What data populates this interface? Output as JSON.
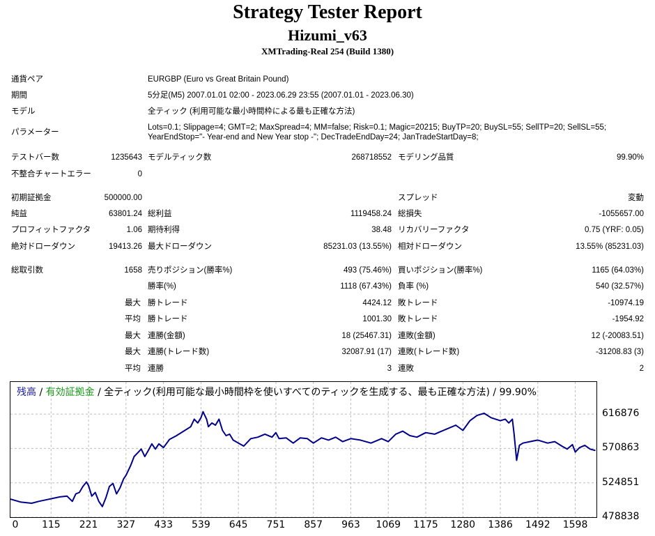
{
  "header": {
    "title": "Strategy Tester Report",
    "subtitle": "Hizumi_v63",
    "build": "XMTrading-Real 254 (Build 1380)"
  },
  "info": [
    {
      "label": "通貨ペア",
      "value": "EURGBP (Euro vs Great Britain Pound)"
    },
    {
      "label": "期間",
      "value": "5分足(M5) 2007.01.01 02:00 - 2023.06.29 23:55 (2007.01.01 - 2023.06.30)"
    },
    {
      "label": "モデル",
      "value": "全ティック (利用可能な最小時間枠による最も正確な方法)"
    },
    {
      "label": "パラメーター",
      "value": "Lots=0.1; Slippage=4; GMT=2; MaxSpread=4; MM=false; Risk=0.1; Magic=20215; BuyTP=20; BuySL=55; SellTP=20; SellSL=55; YearEndStop=\"- Year-end and New Year stop -\"; DecTradeEndDay=24; JanTradeStartDay=8;"
    }
  ],
  "stats": {
    "bars_label": "テストバー数",
    "bars": "1235643",
    "ticks_label": "モデルティック数",
    "ticks": "268718552",
    "quality_label": "モデリング品質",
    "quality": "99.90%",
    "mismatch_label": "不整合チャートエラー",
    "mismatch": "0",
    "deposit_label": "初期証拠金",
    "deposit": "500000.00",
    "spread_label": "スプレッド",
    "spread": "変動",
    "net_label": "純益",
    "net": "63801.24",
    "gross_profit_label": "総利益",
    "gross_profit": "1119458.24",
    "gross_loss_label": "総損失",
    "gross_loss": "-1055657.00",
    "pf_label": "プロフィットファクタ",
    "pf": "1.06",
    "payoff_label": "期待利得",
    "payoff": "38.48",
    "recovery_label": "リカバリーファクタ",
    "recovery": "0.75 (YRF: 0.05)",
    "abs_dd_label": "絶対ドローダウン",
    "abs_dd": "19413.26",
    "max_dd_label": "最大ドローダウン",
    "max_dd": "85231.03 (13.55%)",
    "rel_dd_label": "相対ドローダウン",
    "rel_dd": "13.55% (85231.03)",
    "trades_label": "総取引数",
    "trades": "1658",
    "short_label": "売りポジション(勝率%)",
    "short": "493 (75.46%)",
    "long_label": "買いポジション(勝率%)",
    "long": "1165 (64.03%)",
    "winrate_label": "勝率(%)",
    "winrate": "1118 (67.43%)",
    "lossrate_label": "負率 (%)",
    "lossrate": "540 (32.57%)",
    "max_word": "最大",
    "avg_word": "平均",
    "win_trade_label": "勝トレード",
    "loss_trade_label": "敗トレード",
    "max_win": "4424.12",
    "max_loss": "-10974.19",
    "avg_win": "1001.30",
    "avg_loss": "-1954.92",
    "consec_win_money_label": "連勝(金額)",
    "consec_win_money": "18 (25467.31)",
    "consec_loss_money_label": "連敗(金額)",
    "consec_loss_money": "12 (-20083.51)",
    "consec_win_trades_label": "連勝(トレード数)",
    "consec_win_trades": "32087.91 (17)",
    "consec_loss_trades_label": "連敗(トレード数)",
    "consec_loss_trades": "-31208.83 (3)",
    "avg_consec_win_label": "連勝",
    "avg_consec_win": "3",
    "avg_consec_loss_label": "連敗",
    "avg_consec_loss": "2"
  },
  "legend": {
    "balance": "残高",
    "sep1": " / ",
    "equity": "有効証拠金",
    "sep2": " / ",
    "desc": "全ティック(利用可能な最小時間枠を使いすべてのティックを生成する、最も正確な方法) / 99.90%",
    "balance_color": "#1a1aa0",
    "equity_color": "#1a9a1a"
  },
  "chart_data": {
    "type": "line",
    "ylim": [
      478838,
      630000
    ],
    "xlim": [
      0,
      1658
    ],
    "yticks": [
      616876,
      570863,
      524851,
      478838
    ],
    "xticks": [
      0,
      115,
      221,
      327,
      433,
      539,
      645,
      751,
      857,
      963,
      1069,
      1175,
      1280,
      1386,
      1492,
      1598
    ],
    "line_color": "#00008b",
    "series": [
      {
        "x": [
          0,
          30,
          60,
          80,
          100,
          120,
          140,
          160,
          175,
          185,
          195,
          205,
          215,
          221,
          230,
          240,
          250,
          260,
          270,
          280,
          290,
          300,
          310,
          320,
          327,
          340,
          350,
          360,
          370,
          380,
          390,
          400,
          410,
          420,
          433,
          450,
          470,
          490,
          510,
          520,
          530,
          539,
          545,
          555,
          560,
          570,
          580,
          590,
          600,
          610,
          620,
          630,
          645,
          660,
          680,
          700,
          720,
          740,
          751,
          760,
          780,
          800,
          820,
          840,
          857,
          880,
          900,
          920,
          940,
          963,
          990,
          1020,
          1050,
          1069,
          1090,
          1110,
          1130,
          1150,
          1175,
          1200,
          1220,
          1240,
          1260,
          1280,
          1300,
          1320,
          1340,
          1360,
          1386,
          1400,
          1410,
          1420,
          1425,
          1432,
          1440,
          1450,
          1470,
          1492,
          1520,
          1540,
          1560,
          1575,
          1590,
          1598,
          1610,
          1625,
          1640,
          1655
        ],
        "y": [
          503000,
          499000,
          497500,
          500000,
          502000,
          504000,
          506000,
          507000,
          500000,
          510000,
          512000,
          520000,
          526000,
          521000,
          507000,
          512000,
          500000,
          493000,
          505000,
          520000,
          524000,
          510000,
          518000,
          530000,
          535000,
          548000,
          560000,
          565000,
          570000,
          560000,
          568000,
          577000,
          570000,
          577000,
          572000,
          583000,
          588000,
          594000,
          600000,
          610000,
          605000,
          612000,
          620000,
          610000,
          600000,
          605000,
          602000,
          610000,
          595000,
          588000,
          590000,
          582000,
          578000,
          574000,
          584000,
          586000,
          590000,
          586000,
          592000,
          584000,
          585000,
          578000,
          585000,
          584000,
          578000,
          585000,
          582000,
          586000,
          580000,
          584000,
          582000,
          578000,
          584000,
          580000,
          590000,
          594000,
          588000,
          586000,
          592000,
          590000,
          594000,
          598000,
          602000,
          595000,
          608000,
          615000,
          618000,
          612000,
          608000,
          610000,
          605000,
          610000,
          590000,
          555000,
          575000,
          578000,
          580000,
          582000,
          578000,
          580000,
          574000,
          570000,
          576000,
          566000,
          572000,
          575000,
          570000,
          568000
        ]
      }
    ]
  }
}
